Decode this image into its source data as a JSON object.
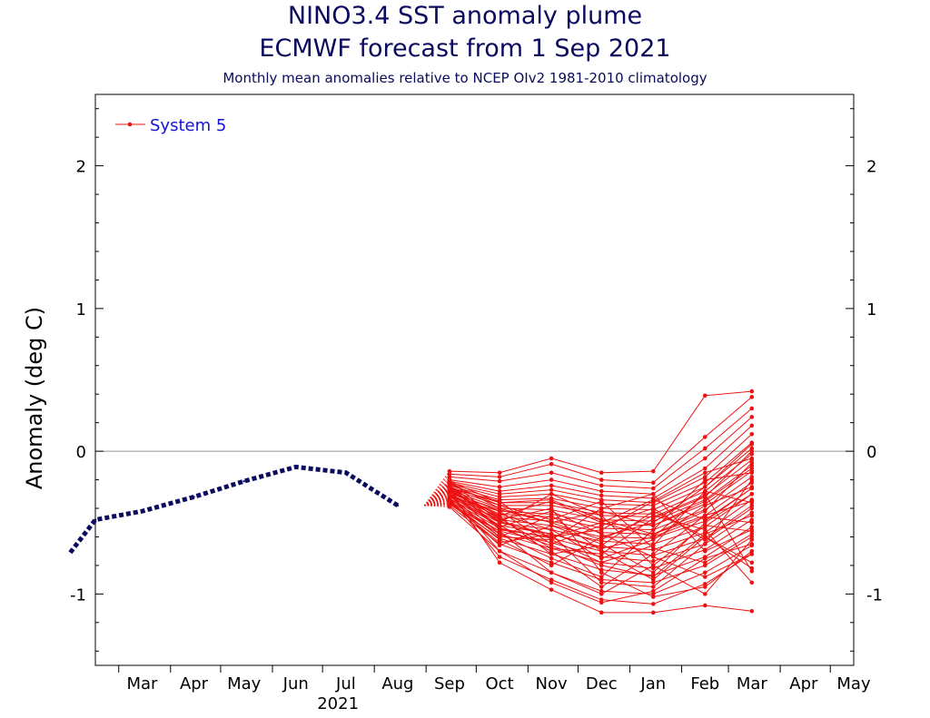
{
  "title": "NINO3.4 SST anomaly plume",
  "subtitle_line": "ECMWF forecast from 1 Sep 2021",
  "caption": "Monthly mean anomalies relative to NCEP OIv2 1981-2010 climatology",
  "chart_data": {
    "type": "line",
    "ylabel": "Anomaly (deg C)",
    "xlabel": "",
    "ylim": [
      -1.5,
      2.5
    ],
    "y_ticks": [
      -1,
      0,
      1,
      2
    ],
    "x_tick_labels": [
      "Mar",
      "Apr",
      "May",
      "Jun",
      "Jul",
      "Aug",
      "Sep",
      "Oct",
      "Nov",
      "Dec",
      "Jan",
      "Feb",
      "Mar",
      "Apr",
      "May"
    ],
    "year_label": "2021",
    "legend": {
      "label": "System 5",
      "position": "top-left"
    },
    "zero_line": true,
    "colors": {
      "observed": "#0a0a5e",
      "forecast": "#ee1111",
      "zero_line": "#999999"
    },
    "observed": {
      "x": [
        "2021-02-15",
        "2021-03-15",
        "2021-04-15",
        "2021-05-15",
        "2021-06-15",
        "2021-07-15",
        "2021-08-15"
      ],
      "y": [
        -0.48,
        -0.42,
        -0.32,
        -0.21,
        -0.11,
        -0.15,
        -0.38
      ],
      "start": {
        "x": "2021-01-31",
        "y": -0.71
      }
    },
    "forecast_x": [
      "2021-09-15",
      "2021-10-15",
      "2021-11-15",
      "2021-12-15",
      "2022-01-15",
      "2022-02-15",
      "2022-03-15"
    ],
    "forecast_start": {
      "x": "2021-08-31",
      "y": -0.38
    },
    "members": [
      [
        -0.14,
        -0.15,
        -0.05,
        -0.15,
        -0.14,
        0.39,
        0.42
      ],
      [
        -0.16,
        -0.18,
        -0.09,
        -0.2,
        -0.22,
        0.1,
        0.38
      ],
      [
        -0.18,
        -0.21,
        -0.15,
        -0.24,
        -0.26,
        0.02,
        0.3
      ],
      [
        -0.2,
        -0.25,
        -0.2,
        -0.28,
        -0.3,
        -0.05,
        0.24
      ],
      [
        -0.21,
        -0.28,
        -0.24,
        -0.31,
        -0.33,
        -0.12,
        0.18
      ],
      [
        -0.22,
        -0.3,
        -0.27,
        -0.34,
        -0.36,
        -0.18,
        0.12
      ],
      [
        -0.23,
        -0.32,
        -0.3,
        -0.37,
        -0.38,
        -0.22,
        0.06
      ],
      [
        -0.24,
        -0.34,
        -0.33,
        -0.4,
        -0.41,
        -0.25,
        0.02
      ],
      [
        -0.25,
        -0.36,
        -0.36,
        -0.43,
        -0.44,
        -0.28,
        -0.02
      ],
      [
        -0.26,
        -0.38,
        -0.38,
        -0.45,
        -0.46,
        -0.31,
        -0.06
      ],
      [
        -0.27,
        -0.4,
        -0.41,
        -0.48,
        -0.49,
        -0.34,
        -0.1
      ],
      [
        -0.28,
        -0.42,
        -0.44,
        -0.51,
        -0.52,
        -0.37,
        -0.14
      ],
      [
        -0.29,
        -0.44,
        -0.46,
        -0.54,
        -0.55,
        -0.41,
        -0.18
      ],
      [
        -0.3,
        -0.46,
        -0.49,
        -0.57,
        -0.58,
        -0.45,
        -0.22
      ],
      [
        -0.31,
        -0.48,
        -0.52,
        -0.6,
        -0.61,
        -0.49,
        -0.26
      ],
      [
        -0.32,
        -0.5,
        -0.55,
        -0.63,
        -0.65,
        -0.53,
        -0.3
      ],
      [
        -0.33,
        -0.52,
        -0.58,
        -0.67,
        -0.69,
        -0.57,
        -0.34
      ],
      [
        -0.34,
        -0.54,
        -0.61,
        -0.7,
        -0.73,
        -0.61,
        -0.38
      ],
      [
        -0.35,
        -0.56,
        -0.64,
        -0.74,
        -0.77,
        -0.65,
        -0.43
      ],
      [
        -0.36,
        -0.58,
        -0.68,
        -0.78,
        -0.82,
        -0.69,
        -0.48
      ],
      [
        -0.37,
        -0.61,
        -0.72,
        -0.83,
        -0.87,
        -0.74,
        -0.53
      ],
      [
        -0.38,
        -0.65,
        -0.78,
        -0.9,
        -0.92,
        -0.8,
        -0.6
      ],
      [
        -0.3,
        -0.7,
        -0.85,
        -0.98,
        -1.0,
        -0.85,
        -0.66
      ],
      [
        -0.33,
        -0.74,
        -0.9,
        -1.04,
        -1.07,
        -0.93,
        -0.72
      ],
      [
        -0.27,
        -0.78,
        -0.97,
        -1.13,
        -1.13,
        -1.08,
        -1.12
      ],
      [
        -0.25,
        -0.55,
        -0.6,
        -0.55,
        -0.35,
        -0.15,
        -0.05
      ],
      [
        -0.28,
        -0.45,
        -0.35,
        -0.5,
        -0.6,
        -0.3,
        -0.84
      ],
      [
        -0.22,
        -0.4,
        -0.5,
        -0.62,
        -0.45,
        -0.55,
        -0.92
      ],
      [
        -0.31,
        -0.6,
        -0.45,
        -0.7,
        -0.9,
        -0.6,
        -0.78
      ],
      [
        -0.26,
        -0.35,
        -0.62,
        -0.4,
        -0.3,
        -0.7,
        -0.55
      ],
      [
        -0.3,
        -0.52,
        -0.7,
        -0.95,
        -0.72,
        -0.45,
        -0.35
      ],
      [
        -0.24,
        -0.48,
        -0.4,
        -0.85,
        -1.02,
        -0.95,
        -0.7
      ],
      [
        -0.35,
        -0.62,
        -0.8,
        -0.6,
        -0.5,
        -0.25,
        0.05
      ],
      [
        -0.29,
        -0.44,
        -0.55,
        -0.75,
        -0.62,
        -0.38,
        -0.25
      ],
      [
        -0.2,
        -0.5,
        -0.3,
        -0.45,
        -0.8,
        -1.0,
        -0.62
      ],
      [
        -0.32,
        -0.42,
        -0.65,
        -0.52,
        -0.4,
        -0.62,
        -0.4
      ],
      [
        -0.28,
        -0.58,
        -0.75,
        -0.88,
        -0.55,
        -0.2,
        -0.15
      ],
      [
        -0.23,
        -0.38,
        -0.48,
        -0.35,
        -0.68,
        -0.78,
        -0.58
      ],
      [
        -0.34,
        -0.66,
        -0.52,
        -0.65,
        -0.85,
        -0.5,
        -0.3
      ],
      [
        -0.27,
        -0.47,
        -0.68,
        -0.72,
        -0.47,
        -0.32,
        0.0
      ],
      [
        -0.31,
        -0.53,
        -0.42,
        -0.58,
        -0.74,
        -0.88,
        -0.72
      ],
      [
        -0.26,
        -0.5,
        -0.58,
        -0.92,
        -0.95,
        -0.65,
        -0.2
      ],
      [
        -0.37,
        -0.56,
        -0.85,
        -1.0,
        -0.8,
        -0.52,
        -0.56
      ],
      [
        -0.21,
        -0.36,
        -0.34,
        -0.48,
        -0.58,
        -0.42,
        -0.08
      ],
      [
        -0.33,
        -0.6,
        -0.62,
        -0.78,
        -0.66,
        -0.28,
        -0.36
      ],
      [
        -0.25,
        -0.46,
        -0.72,
        -0.66,
        -0.42,
        -0.6,
        -0.82
      ],
      [
        -0.39,
        -0.7,
        -0.92,
        -1.06,
        -0.98,
        -0.75,
        -0.65
      ],
      [
        -0.29,
        -0.41,
        -0.5,
        -0.42,
        -0.52,
        -0.35,
        -0.12
      ],
      [
        -0.24,
        -0.54,
        -0.66,
        -0.8,
        -0.88,
        -0.58,
        -0.45
      ],
      [
        -0.36,
        -0.64,
        -0.58,
        -0.68,
        -0.6,
        -0.46,
        -0.5
      ],
      [
        -0.3,
        -0.49,
        -0.6,
        -0.5,
        -0.34,
        -0.48,
        -0.26
      ]
    ]
  }
}
